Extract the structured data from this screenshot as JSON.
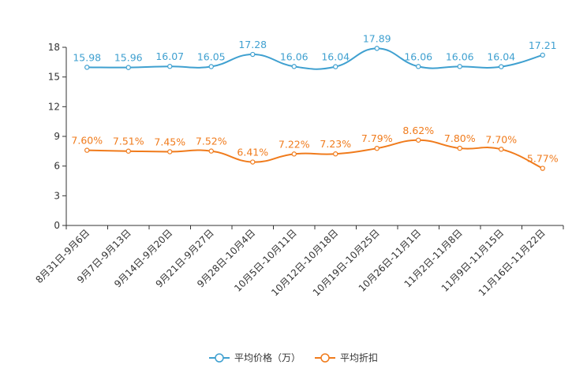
{
  "chart_data": {
    "type": "line",
    "categories": [
      "8月31日-9月6日",
      "9月7日-9月13日",
      "9月14日-9月20日",
      "9月21日-9月27日",
      "9月28日-10月4日",
      "10月5日-10月11日",
      "10月12日-10月18日",
      "10月19日-10月25日",
      "10月26日-11月1日",
      "11月2日-11月8日",
      "11月9日-11月15日",
      "11月16日-11月22日"
    ],
    "ylim": [
      0,
      18
    ],
    "yticks": [
      0,
      3,
      6,
      9,
      12,
      15,
      18
    ],
    "series": [
      {
        "name": "平均价格（万）",
        "color": "#3fa0d0",
        "values": [
          15.98,
          15.96,
          16.07,
          16.05,
          17.28,
          16.06,
          16.04,
          17.89,
          16.06,
          16.06,
          16.04,
          17.21
        ],
        "labels": [
          "15.98",
          "15.96",
          "16.07",
          "16.05",
          "17.28",
          "16.06",
          "16.04",
          "17.89",
          "16.06",
          "16.06",
          "16.04",
          "17.21"
        ]
      },
      {
        "name": "平均折扣",
        "color": "#f07b1c",
        "values": [
          7.6,
          7.51,
          7.45,
          7.52,
          6.41,
          7.22,
          7.23,
          7.79,
          8.62,
          7.8,
          7.7,
          5.77
        ],
        "labels": [
          "7.60%",
          "7.51%",
          "7.45%",
          "7.52%",
          "6.41%",
          "7.22%",
          "7.23%",
          "7.79%",
          "8.62%",
          "7.80%",
          "7.70%",
          "5.77%"
        ]
      }
    ],
    "xlabel": "",
    "ylabel": "",
    "legend": "bottom-center"
  }
}
